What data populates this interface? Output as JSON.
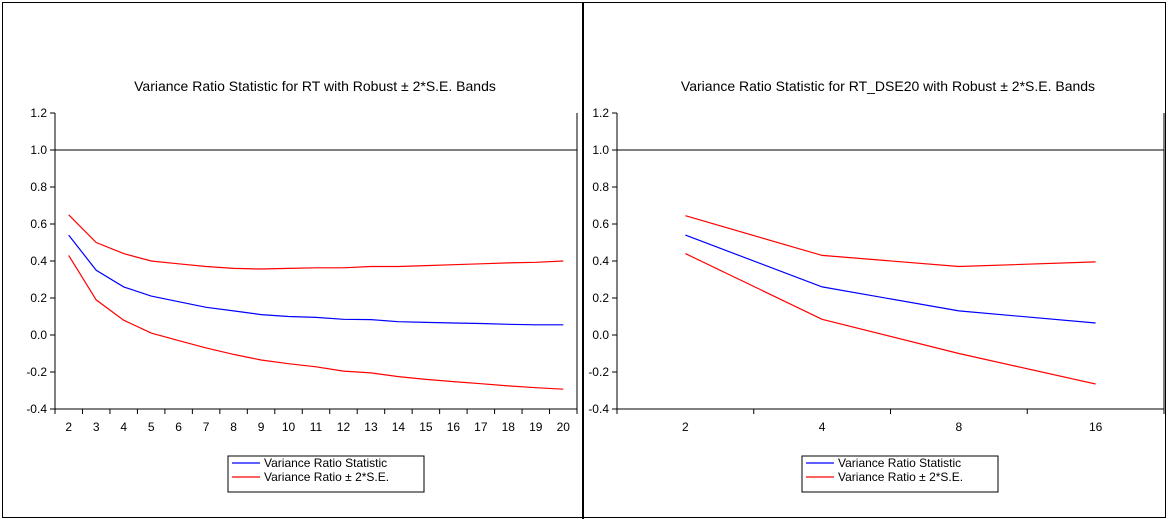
{
  "chart_data": [
    {
      "type": "line",
      "title": "Variance Ratio Statistic for RT with Robust ± 2*S.E. Bands",
      "xlabel": "",
      "ylabel": "",
      "categories": [
        "2",
        "3",
        "4",
        "5",
        "6",
        "7",
        "8",
        "9",
        "10",
        "11",
        "12",
        "13",
        "14",
        "15",
        "16",
        "17",
        "18",
        "19",
        "20"
      ],
      "ylim": [
        -0.4,
        1.2
      ],
      "yticks": [
        "-0.4",
        "-0.2",
        "0.0",
        "0.2",
        "0.4",
        "0.6",
        "0.8",
        "1.0",
        "1.2"
      ],
      "reference_line": 1.0,
      "legend_position": "bottom-center",
      "series": [
        {
          "name": "Variance Ratio Statistic",
          "color": "#0000ff",
          "values": [
            0.54,
            0.35,
            0.26,
            0.21,
            0.18,
            0.15,
            0.13,
            0.11,
            0.1,
            0.095,
            0.085,
            0.083,
            0.072,
            0.068,
            0.065,
            0.062,
            0.058,
            0.055,
            0.055
          ]
        },
        {
          "name": "Variance Ratio ± 2*S.E.",
          "color": "#ff0000",
          "values": [
            0.65,
            0.5,
            0.44,
            0.4,
            0.385,
            0.37,
            0.36,
            0.357,
            0.36,
            0.363,
            0.363,
            0.37,
            0.37,
            0.375,
            0.38,
            0.385,
            0.39,
            0.393,
            0.4
          ]
        },
        {
          "name": "",
          "color": "#ff0000",
          "values": [
            0.43,
            0.19,
            0.08,
            0.01,
            -0.03,
            -0.07,
            -0.105,
            -0.135,
            -0.155,
            -0.172,
            -0.195,
            -0.205,
            -0.225,
            -0.24,
            -0.252,
            -0.263,
            -0.275,
            -0.285,
            -0.293
          ]
        }
      ]
    },
    {
      "type": "line",
      "title": "Variance Ratio Statistic for RT_DSE20 with Robust ± 2*S.E. Bands",
      "xlabel": "",
      "ylabel": "",
      "categories": [
        "2",
        "4",
        "8",
        "16"
      ],
      "ylim": [
        -0.4,
        1.2
      ],
      "yticks": [
        "-0.4",
        "-0.2",
        "0.0",
        "0.2",
        "0.4",
        "0.6",
        "0.8",
        "1.0",
        "1.2"
      ],
      "reference_line": 1.0,
      "legend_position": "bottom-center",
      "series": [
        {
          "name": "Variance Ratio Statistic",
          "color": "#0000ff",
          "values": [
            0.54,
            0.26,
            0.13,
            0.065
          ]
        },
        {
          "name": "Variance Ratio ± 2*S.E.",
          "color": "#ff0000",
          "values": [
            0.645,
            0.43,
            0.37,
            0.395
          ]
        },
        {
          "name": "",
          "color": "#ff0000",
          "values": [
            0.44,
            0.085,
            -0.1,
            -0.265
          ]
        }
      ]
    }
  ]
}
